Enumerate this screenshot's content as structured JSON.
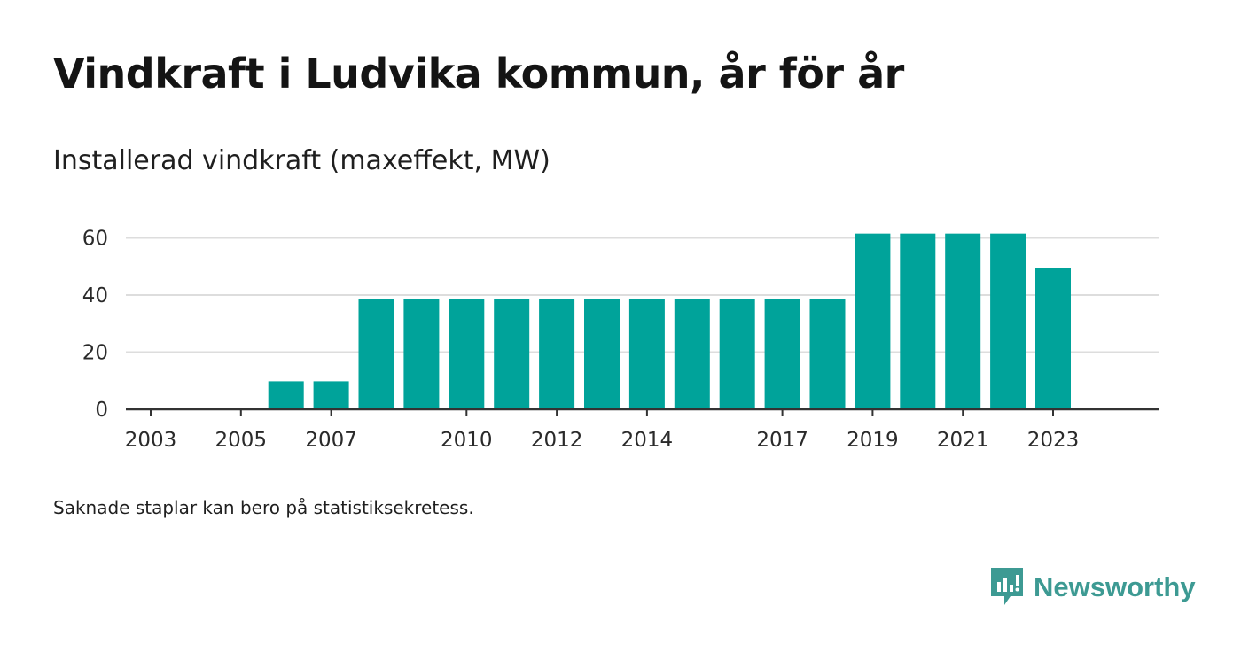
{
  "title": "Vindkraft i Ludvika kommun, år för år",
  "subtitle": "Installerad vindkraft (maxeffekt, MW)",
  "note": "Saknade staplar kan bero på statistiksekretess.",
  "brand": {
    "name": "Newsworthy",
    "icon": "newsworthy-logo-icon",
    "color": "#3d9a93"
  },
  "colors": {
    "bar": "#00a39a",
    "grid": "#dddddd",
    "axis": "#333333"
  },
  "chart_data": {
    "type": "bar",
    "title": "Vindkraft i Ludvika kommun, år för år",
    "ylabel": "",
    "xlabel": "",
    "ylim": [
      0,
      65
    ],
    "yticks": [
      0,
      20,
      40,
      60
    ],
    "grid": true,
    "categories": [
      "2003",
      "2004",
      "2005",
      "2006",
      "2007",
      "2008",
      "2009",
      "2010",
      "2011",
      "2012",
      "2013",
      "2014",
      "2015",
      "2016",
      "2017",
      "2018",
      "2019",
      "2020",
      "2021",
      "2022",
      "2023"
    ],
    "x_tick_labels": [
      "2003",
      "2005",
      "2007",
      "2010",
      "2012",
      "2014",
      "2017",
      "2019",
      "2021",
      "2023"
    ],
    "values": [
      0,
      0,
      0,
      9.8,
      9.8,
      38.5,
      38.5,
      38.5,
      38.5,
      38.5,
      38.5,
      38.5,
      38.5,
      38.5,
      38.5,
      38.5,
      61.5,
      61.5,
      61.5,
      61.5,
      49.5
    ]
  }
}
